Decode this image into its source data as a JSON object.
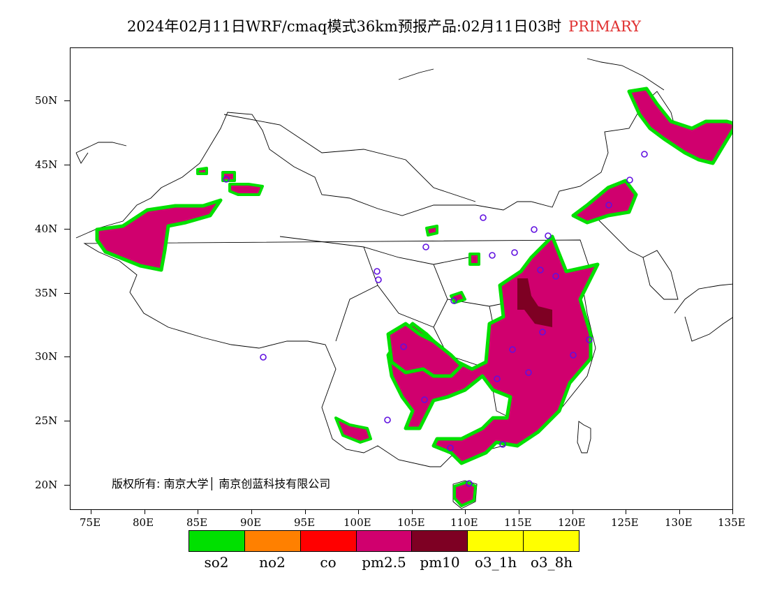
{
  "title": {
    "main": "2024年02月11日WRF/cmaq模式36km预报产品:02月11日03时",
    "tag": "PRIMARY",
    "tag_color": "#e03030"
  },
  "map": {
    "lon_range": [
      73,
      135
    ],
    "lat_range": [
      18,
      54
    ],
    "lat_ticks": [
      "50N",
      "45N",
      "40N",
      "35N",
      "30N",
      "25N",
      "20N"
    ],
    "lon_ticks": [
      "75E",
      "80E",
      "85E",
      "90E",
      "95E",
      "100E",
      "105E",
      "110E",
      "115E",
      "120E",
      "125E",
      "130E",
      "135E"
    ],
    "copyright": "版权所有: 南京大学│ 南京创蓝科技有限公司",
    "station_marker_color": "#6010e0"
  },
  "legend": {
    "items": [
      {
        "label": "so2",
        "color": "#00e000"
      },
      {
        "label": "no2",
        "color": "#ff8000"
      },
      {
        "label": "co",
        "color": "#ff0000"
      },
      {
        "label": "pm2.5",
        "color": "#d0006e"
      },
      {
        "label": "pm10",
        "color": "#7e0023"
      },
      {
        "label": "o3_1h",
        "color": "#ffff00"
      },
      {
        "label": "o3_8h",
        "color": "#ffff00"
      }
    ]
  }
}
